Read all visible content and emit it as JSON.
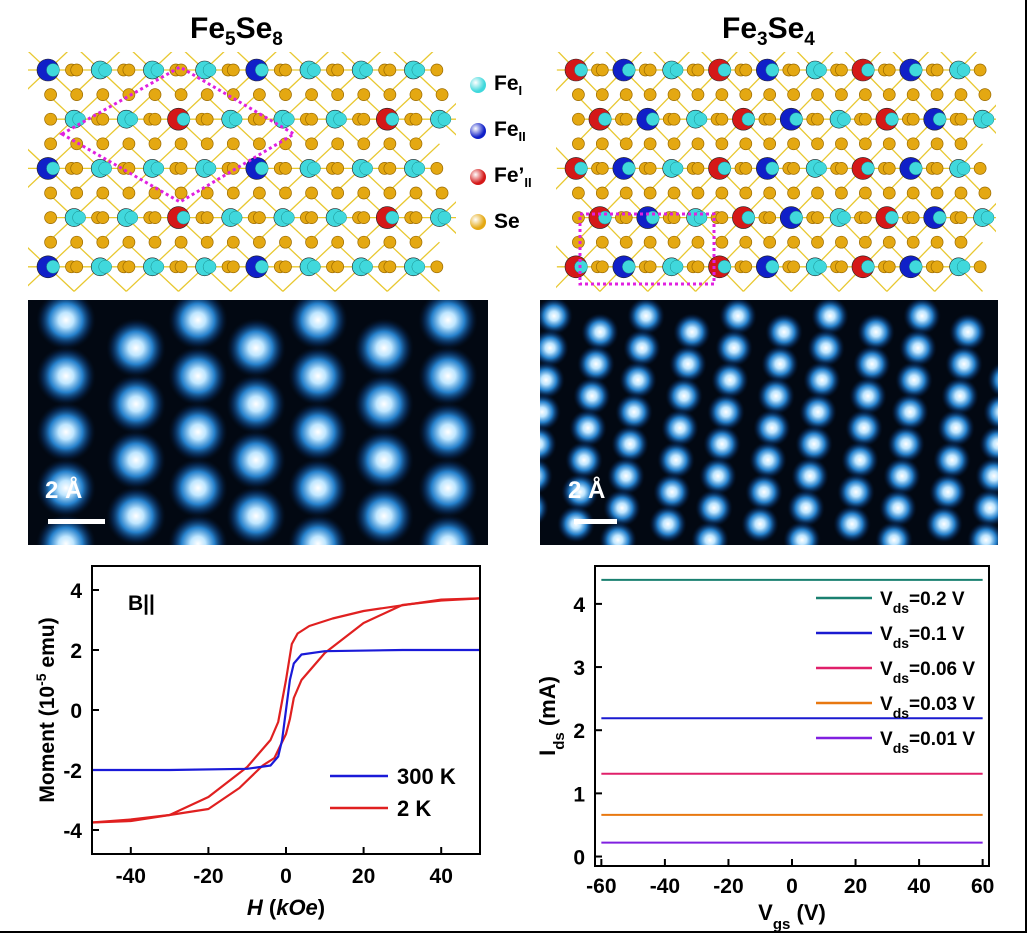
{
  "titles": {
    "left": {
      "base": "Fe",
      "s1": "5",
      "mid": "Se",
      "s2": "8"
    },
    "right": {
      "base": "Fe",
      "s1": "3",
      "mid": "Se",
      "s2": "4"
    }
  },
  "colors": {
    "fe_i": "#40d8dc",
    "fe_ii": "#1020c8",
    "fe_ii_prime": "#d41818",
    "se": "#e4a812",
    "bond": "#e8c830",
    "cell": "#e020e0",
    "stm_dark": "#020812",
    "stm_bright": "#ffffff",
    "curve_300k": "#1a1ad8",
    "curve_2k": "#e02020"
  },
  "legend": [
    {
      "key": "fe_i",
      "icon": "fe-i-atom-icon",
      "label": "Fe",
      "sub": "I",
      "prime": ""
    },
    {
      "key": "fe_ii",
      "icon": "fe-ii-atom-icon",
      "label": "Fe",
      "sub": "II",
      "prime": ""
    },
    {
      "key": "fe_ii_prime",
      "icon": "fe-ii-prime-atom-icon",
      "label": "Fe",
      "sub": "II",
      "prime": "’"
    },
    {
      "key": "se",
      "icon": "se-atom-icon",
      "label": "Se",
      "sub": "",
      "prime": ""
    }
  ],
  "stm": {
    "left_scale": "2 Å",
    "right_scale": "2 Å"
  },
  "chart_data": [
    {
      "type": "line",
      "annotation": "B||",
      "xlabel": "H (kOe)",
      "ylabel_main": "Moment (10",
      "ylabel_sup": "-5",
      "ylabel_end": " emu)",
      "xlim": [
        -50,
        50
      ],
      "ylim": [
        -4.8,
        4.8
      ],
      "xticks": [
        -40,
        -20,
        0,
        20,
        40
      ],
      "yticks": [
        -4,
        -2,
        0,
        2,
        4
      ],
      "legend_position": "lower-right",
      "series": [
        {
          "name": "300 K",
          "color": "#1a1ad8",
          "x": [
            -50,
            -30,
            -10,
            -4,
            -2,
            -1,
            0,
            1,
            2,
            4,
            10,
            30,
            50
          ],
          "y": [
            -2.0,
            -2.0,
            -1.96,
            -1.85,
            -1.55,
            -1.0,
            0.0,
            1.0,
            1.55,
            1.85,
            1.96,
            2.0,
            2.0
          ]
        },
        {
          "name": "2 K",
          "color": "#e02020",
          "branches": [
            {
              "x": [
                -50,
                -40,
                -20,
                -12,
                -6,
                -3,
                -1.5,
                0,
                1,
                2,
                4,
                10,
                20,
                30,
                40,
                50
              ],
              "y": [
                -3.75,
                -3.7,
                -3.3,
                -2.6,
                -1.85,
                -1.6,
                -1.2,
                -0.8,
                -0.3,
                0.4,
                1.0,
                1.9,
                2.9,
                3.5,
                3.65,
                3.72
              ]
            },
            {
              "x": [
                50,
                40,
                20,
                12,
                6,
                3,
                1.5,
                0,
                -1,
                -2,
                -4,
                -10,
                -20,
                -30,
                -40,
                -50
              ],
              "y": [
                3.72,
                3.68,
                3.3,
                3.05,
                2.8,
                2.55,
                2.2,
                1.0,
                0.3,
                -0.4,
                -1.0,
                -1.9,
                -2.9,
                -3.5,
                -3.65,
                -3.75
              ]
            }
          ]
        }
      ]
    },
    {
      "type": "line",
      "xlabel_main": "V",
      "xlabel_sub": "gs",
      "xlabel_end": " (V)",
      "ylabel_main": "I",
      "ylabel_sub": "ds",
      "ylabel_end": " (mA)",
      "xlim": [
        -62,
        62
      ],
      "ylim": [
        -0.15,
        4.6
      ],
      "xticks": [
        -60,
        -40,
        -20,
        0,
        20,
        40,
        60
      ],
      "yticks": [
        0,
        1,
        2,
        3,
        4
      ],
      "legend_position": "upper-right",
      "series": [
        {
          "prefix": "V",
          "sub": "ds",
          "suffix": "=0.2 V",
          "color": "#1a8070",
          "x": [
            -60,
            60
          ],
          "y": [
            4.38,
            4.38
          ]
        },
        {
          "prefix": "V",
          "sub": "ds",
          "suffix": "=0.1 V",
          "color": "#1a1ad0",
          "x": [
            -60,
            60
          ],
          "y": [
            2.19,
            2.19
          ]
        },
        {
          "prefix": "V",
          "sub": "ds",
          "suffix": "=0.06 V",
          "color": "#e0206a",
          "x": [
            -60,
            60
          ],
          "y": [
            1.31,
            1.31
          ]
        },
        {
          "prefix": "V",
          "sub": "ds",
          "suffix": "=0.03 V",
          "color": "#e87810",
          "x": [
            -60,
            60
          ],
          "y": [
            0.66,
            0.66
          ]
        },
        {
          "prefix": "V",
          "sub": "ds",
          "suffix": "=0.01 V",
          "color": "#8020e0",
          "x": [
            -60,
            60
          ],
          "y": [
            0.22,
            0.22
          ]
        }
      ]
    }
  ]
}
